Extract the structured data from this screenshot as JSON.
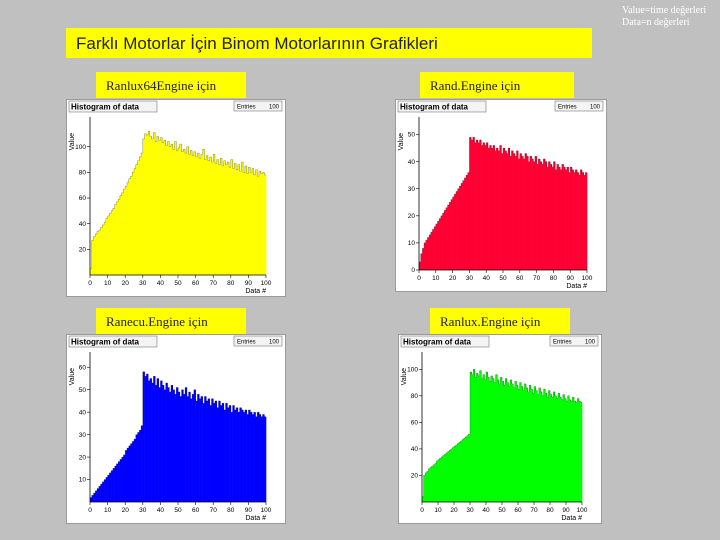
{
  "slide_title": "Farklı Motorlar İçin Binom Motorlarının Grafikleri",
  "legend_note": "Value=time değerleri\nData=n değerleri",
  "panels": [
    {
      "engine_label": "Ranlux64Engine için"
    },
    {
      "engine_label": "Rand.Engine için"
    },
    {
      "engine_label": "Ranecu.Engine için"
    },
    {
      "engine_label": "Ranlux.Engine için"
    }
  ],
  "chart_data": [
    {
      "type": "bar",
      "title": "Histogram of data",
      "stats_label": "Entries",
      "stats_value": "100",
      "xlabel": "Data #",
      "ylabel": "Value",
      "color": "#ffff00",
      "xlim": [
        0,
        100
      ],
      "ylim": [
        0,
        120
      ],
      "x_ticks": [
        "0",
        "10",
        "20",
        "30",
        "40",
        "50",
        "60",
        "70",
        "80",
        "90",
        "100"
      ],
      "y_ticks": [
        {
          "v": 20,
          "t": "20"
        },
        {
          "v": 40,
          "t": "40"
        },
        {
          "v": 60,
          "t": "60"
        },
        {
          "v": 80,
          "t": "80"
        },
        {
          "v": 100,
          "t": "100"
        }
      ],
      "values": [
        5,
        27,
        30,
        32,
        34,
        35,
        37,
        39,
        41,
        44,
        46,
        48,
        50,
        52,
        55,
        57,
        59,
        62,
        64,
        67,
        69,
        72,
        75,
        77,
        80,
        83,
        86,
        89,
        92,
        95,
        106,
        110,
        109,
        112,
        108,
        106,
        111,
        104,
        108,
        105,
        107,
        103,
        105,
        101,
        104,
        100,
        102,
        98,
        104,
        97,
        99,
        102,
        96,
        98,
        95,
        100,
        94,
        97,
        93,
        96,
        92,
        95,
        91,
        94,
        98,
        90,
        93,
        89,
        92,
        88,
        94,
        87,
        90,
        86,
        91,
        85,
        89,
        86,
        88,
        84,
        90,
        83,
        87,
        82,
        86,
        81,
        88,
        80,
        85,
        79,
        84,
        80,
        83,
        78,
        82,
        77,
        81,
        79,
        80,
        78
      ]
    },
    {
      "type": "bar",
      "title": "Histogram of data",
      "stats_label": "Entries",
      "stats_value": "100",
      "xlabel": "Data #",
      "ylabel": "Value",
      "color": "#ff0033",
      "xlim": [
        0,
        100
      ],
      "ylim": [
        0,
        55
      ],
      "x_ticks": [
        "0",
        "10",
        "20",
        "30",
        "40",
        "50",
        "60",
        "70",
        "80",
        "90",
        "100"
      ],
      "y_ticks": [
        {
          "v": 0,
          "t": "0"
        },
        {
          "v": 10,
          "t": "10"
        },
        {
          "v": 20,
          "t": "20"
        },
        {
          "v": 30,
          "t": "30"
        },
        {
          "v": 40,
          "t": "40"
        },
        {
          "v": 50,
          "t": "50"
        }
      ],
      "values": [
        3,
        6,
        8,
        10,
        11,
        12,
        13,
        14,
        15,
        16,
        17,
        18,
        19,
        20,
        21,
        22,
        23,
        24,
        25,
        26,
        27,
        28,
        29,
        30,
        31,
        32,
        33,
        34,
        35,
        36,
        49,
        48,
        49,
        47,
        48,
        47,
        48,
        46,
        47,
        46,
        47,
        45,
        46,
        45,
        46,
        44,
        45,
        44,
        46,
        43,
        45,
        44,
        43,
        45,
        42,
        44,
        43,
        42,
        44,
        41,
        43,
        42,
        41,
        43,
        42,
        40,
        42,
        41,
        40,
        42,
        39,
        41,
        40,
        39,
        41,
        40,
        38,
        40,
        39,
        38,
        40,
        37,
        39,
        38,
        37,
        39,
        38,
        37,
        38,
        36,
        38,
        37,
        36,
        37,
        36,
        35,
        37,
        36,
        35,
        36
      ]
    },
    {
      "type": "bar",
      "title": "Histogram of data",
      "stats_label": "Entries",
      "stats_value": "100",
      "xlabel": "Data #",
      "ylabel": "Value",
      "color": "#0000ff",
      "xlim": [
        0,
        100
      ],
      "ylim": [
        0,
        65
      ],
      "x_ticks": [
        "0",
        "10",
        "20",
        "30",
        "40",
        "50",
        "60",
        "70",
        "80",
        "90",
        "100"
      ],
      "y_ticks": [
        {
          "v": 10,
          "t": "10"
        },
        {
          "v": 20,
          "t": "20"
        },
        {
          "v": 30,
          "t": "30"
        },
        {
          "v": 40,
          "t": "40"
        },
        {
          "v": 50,
          "t": "50"
        },
        {
          "v": 60,
          "t": "60"
        }
      ],
      "values": [
        2,
        3,
        4,
        5,
        6,
        7,
        8,
        9,
        10,
        11,
        12,
        13,
        14,
        15,
        16,
        17,
        18,
        19,
        20,
        21,
        23,
        24,
        25,
        26,
        27,
        28,
        30,
        31,
        32,
        34,
        58,
        56,
        57,
        54,
        55,
        53,
        56,
        52,
        55,
        51,
        54,
        52,
        50,
        53,
        51,
        49,
        52,
        50,
        48,
        51,
        49,
        47,
        50,
        48,
        51,
        47,
        49,
        46,
        48,
        50,
        45,
        48,
        46,
        47,
        44,
        47,
        45,
        46,
        43,
        46,
        44,
        45,
        42,
        45,
        43,
        44,
        41,
        44,
        42,
        43,
        40,
        43,
        41,
        42,
        40,
        42,
        41,
        40,
        41,
        39,
        41,
        40,
        39,
        40,
        38,
        40,
        39,
        38,
        39,
        38
      ]
    },
    {
      "type": "bar",
      "title": "Histogram of data",
      "stats_label": "Entries",
      "stats_value": "100",
      "xlabel": "Data #",
      "ylabel": "Value",
      "color": "#00ff00",
      "xlim": [
        0,
        100
      ],
      "ylim": [
        0,
        110
      ],
      "x_ticks": [
        "0",
        "10",
        "20",
        "30",
        "40",
        "50",
        "60",
        "70",
        "80",
        "90",
        "100"
      ],
      "y_ticks": [
        {
          "v": 20,
          "t": "20"
        },
        {
          "v": 40,
          "t": "40"
        },
        {
          "v": 60,
          "t": "60"
        },
        {
          "v": 80,
          "t": "80"
        },
        {
          "v": 100,
          "t": "100"
        }
      ],
      "values": [
        4,
        20,
        22,
        23,
        25,
        26,
        27,
        28,
        29,
        31,
        32,
        33,
        34,
        35,
        36,
        37,
        38,
        39,
        40,
        41,
        42,
        43,
        44,
        45,
        46,
        47,
        48,
        49,
        50,
        51,
        98,
        96,
        100,
        94,
        97,
        95,
        99,
        93,
        96,
        92,
        98,
        94,
        91,
        95,
        93,
        90,
        96,
        92,
        89,
        94,
        91,
        88,
        93,
        90,
        87,
        92,
        89,
        86,
        91,
        88,
        85,
        90,
        87,
        84,
        89,
        86,
        83,
        88,
        85,
        82,
        87,
        84,
        81,
        86,
        83,
        80,
        85,
        82,
        79,
        84,
        81,
        79,
        83,
        80,
        78,
        82,
        79,
        77,
        81,
        78,
        76,
        80,
        77,
        76,
        79,
        76,
        75,
        78,
        76,
        75
      ]
    }
  ]
}
